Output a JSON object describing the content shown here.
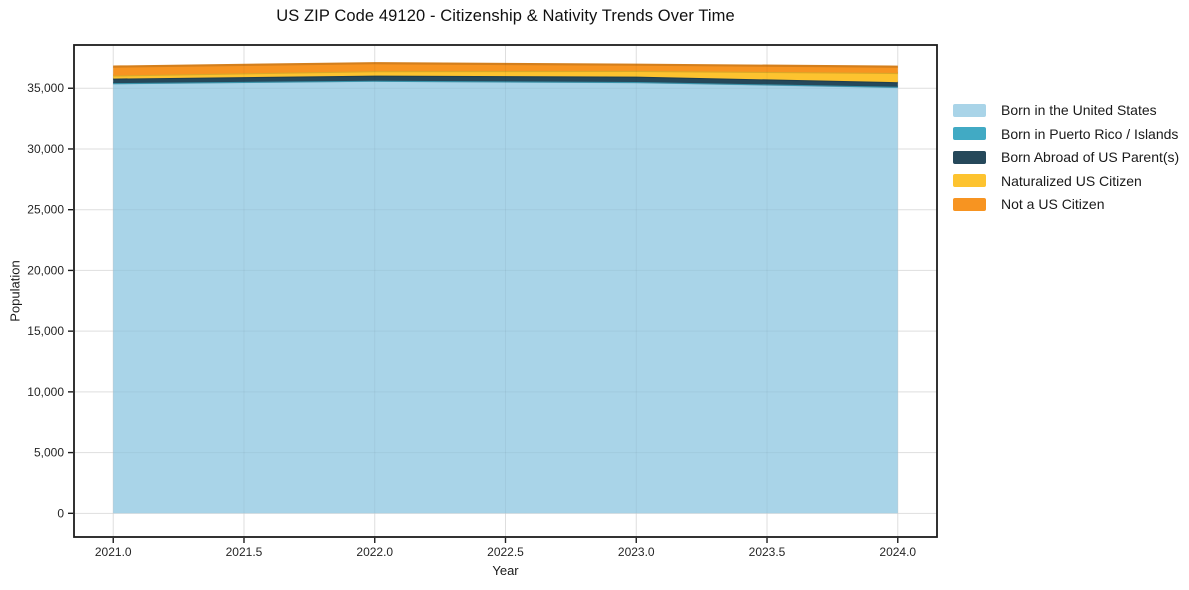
{
  "chart_data": {
    "type": "area",
    "stacked": true,
    "title": "US ZIP Code 49120 - Citizenship & Nativity Trends Over Time",
    "xlabel": "Year",
    "ylabel": "Population",
    "x": [
      2021,
      2022,
      2023,
      2024
    ],
    "series": [
      {
        "name": "Born in the United States",
        "color": "#A9D4E8",
        "values": [
          35410,
          35610,
          35500,
          35100
        ]
      },
      {
        "name": "Born in Puerto Rico / Islands",
        "color": "#41AAC4",
        "values": [
          10,
          10,
          15,
          15
        ]
      },
      {
        "name": "Born Abroad of US Parent(s)",
        "color": "#25485A",
        "values": [
          370,
          420,
          440,
          380
        ]
      },
      {
        "name": "Naturalized US Citizen",
        "color": "#FDC32F",
        "values": [
          260,
          370,
          470,
          760
        ]
      },
      {
        "name": "Not a US Citizen",
        "color": "#F79421",
        "values": [
          730,
          650,
          510,
          520
        ]
      }
    ],
    "xticks": [
      2021.0,
      2021.5,
      2022.0,
      2022.5,
      2023.0,
      2023.5,
      2024.0
    ],
    "xtick_labels": [
      "2021.0",
      "2021.5",
      "2022.0",
      "2022.5",
      "2023.0",
      "2023.5",
      "2024.0"
    ],
    "yticks": [
      0,
      5000,
      10000,
      15000,
      20000,
      25000,
      30000,
      35000
    ],
    "ytick_labels": [
      "0",
      "5,000",
      "10,000",
      "15,000",
      "20,000",
      "25,000",
      "30,000",
      "35,000"
    ],
    "xlim": [
      2020.85,
      2024.15
    ],
    "ylim": [
      -1950,
      38560
    ],
    "grid": true,
    "legend_position": "center-right-outside",
    "colors": {
      "grid": "#e9e9e9",
      "spine": "#1c1c1c",
      "tick_label": "#262626",
      "background": "#ffffff"
    }
  }
}
